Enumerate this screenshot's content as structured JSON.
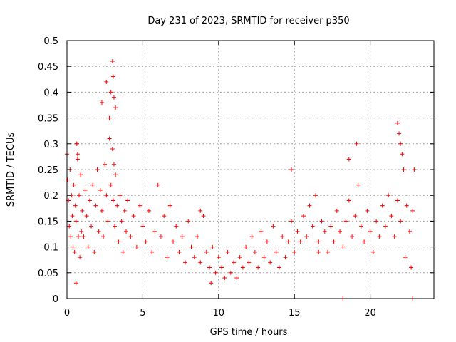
{
  "colors": {
    "series": "#ff0000",
    "axis": "#000000",
    "grid": "#a0a0a0",
    "background": "#ffffff"
  },
  "chart_data": {
    "type": "scatter",
    "title": "Day 231 of 2023, SRMTID for receiver p350",
    "xlabel": "GPS time / hours",
    "ylabel": "SRMTID / TECUs",
    "xlim": [
      0,
      24.2
    ],
    "ylim": [
      0,
      0.5
    ],
    "xticks": [
      0,
      5,
      10,
      15,
      20
    ],
    "xtick_labels": [
      "0",
      "5",
      "10",
      "15",
      "20"
    ],
    "yticks": [
      0,
      0.05,
      0.1,
      0.15,
      0.2,
      0.25,
      0.3,
      0.35,
      0.4,
      0.45,
      0.5
    ],
    "ytick_labels": [
      "0",
      "0.05",
      "0.1",
      "0.15",
      "0.2",
      "0.25",
      "0.3",
      "0.35",
      "0.4",
      "0.45",
      "0.5"
    ],
    "grid": true,
    "marker": "+",
    "series": [
      {
        "name": "SRMTID p350",
        "x": [
          0.0,
          0.05,
          0.1,
          0.15,
          0.2,
          0.25,
          0.3,
          0.35,
          0.4,
          0.45,
          0.5,
          0.55,
          0.6,
          0.65,
          0.7,
          0.75,
          0.8,
          0.85,
          0.9,
          0.95,
          1.0,
          1.1,
          1.2,
          1.3,
          1.4,
          1.5,
          1.6,
          1.7,
          1.8,
          1.9,
          2.0,
          2.1,
          2.2,
          2.3,
          2.4,
          2.5,
          2.6,
          2.7,
          2.8,
          2.9,
          3.0,
          3.05,
          3.1,
          3.15,
          3.2,
          3.3,
          3.4,
          3.5,
          3.6,
          3.7,
          3.8,
          3.9,
          4.0,
          4.2,
          4.4,
          4.6,
          4.8,
          5.0,
          5.2,
          5.4,
          5.6,
          5.8,
          6.0,
          6.2,
          6.4,
          6.6,
          6.8,
          7.0,
          7.2,
          7.4,
          7.6,
          7.8,
          8.0,
          8.2,
          8.4,
          8.6,
          8.8,
          9.0,
          9.2,
          9.4,
          9.6,
          9.8,
          10.0,
          10.2,
          10.4,
          10.6,
          10.8,
          11.0,
          11.2,
          11.4,
          11.6,
          11.8,
          12.0,
          12.2,
          12.4,
          12.6,
          12.8,
          13.0,
          13.2,
          13.4,
          13.6,
          13.8,
          14.0,
          14.2,
          14.4,
          14.6,
          14.8,
          15.0,
          15.2,
          15.4,
          15.6,
          15.8,
          16.0,
          16.2,
          16.4,
          16.6,
          16.8,
          17.0,
          17.2,
          17.4,
          17.6,
          17.8,
          18.0,
          18.2,
          18.4,
          18.6,
          18.8,
          19.0,
          19.2,
          19.4,
          19.6,
          19.8,
          20.0,
          20.2,
          20.4,
          20.6,
          20.8,
          21.0,
          21.2,
          21.4,
          21.6,
          21.8,
          22.0,
          22.2,
          22.4,
          22.6,
          22.8,
          3.0,
          3.05,
          3.1,
          3.2,
          2.9,
          2.8,
          2.6,
          2.3,
          0.65,
          0.7,
          19.1,
          18.6,
          21.8,
          21.9,
          22.0,
          22.1,
          22.3,
          22.7,
          22.9,
          18.2,
          22.8,
          0.6,
          8.8,
          9.5,
          14.8,
          16.6
        ],
        "y": [
          0.28,
          0.23,
          0.19,
          0.14,
          0.25,
          0.12,
          0.2,
          0.16,
          0.1,
          0.22,
          0.09,
          0.18,
          0.15,
          0.3,
          0.27,
          0.12,
          0.2,
          0.08,
          0.24,
          0.13,
          0.17,
          0.12,
          0.21,
          0.16,
          0.1,
          0.19,
          0.14,
          0.22,
          0.09,
          0.18,
          0.25,
          0.13,
          0.21,
          0.17,
          0.12,
          0.26,
          0.2,
          0.15,
          0.31,
          0.22,
          0.29,
          0.19,
          0.26,
          0.14,
          0.24,
          0.18,
          0.11,
          0.2,
          0.15,
          0.09,
          0.17,
          0.13,
          0.19,
          0.12,
          0.16,
          0.1,
          0.18,
          0.14,
          0.11,
          0.17,
          0.09,
          0.13,
          0.22,
          0.12,
          0.16,
          0.08,
          0.18,
          0.11,
          0.14,
          0.09,
          0.12,
          0.07,
          0.15,
          0.1,
          0.08,
          0.12,
          0.07,
          0.16,
          0.09,
          0.06,
          0.1,
          0.05,
          0.08,
          0.06,
          0.04,
          0.09,
          0.05,
          0.07,
          0.04,
          0.08,
          0.06,
          0.1,
          0.07,
          0.12,
          0.09,
          0.06,
          0.13,
          0.08,
          0.11,
          0.07,
          0.14,
          0.09,
          0.06,
          0.12,
          0.08,
          0.11,
          0.15,
          0.09,
          0.13,
          0.11,
          0.16,
          0.12,
          0.18,
          0.14,
          0.2,
          0.11,
          0.15,
          0.13,
          0.09,
          0.14,
          0.11,
          0.17,
          0.13,
          0.1,
          0.15,
          0.19,
          0.12,
          0.16,
          0.22,
          0.14,
          0.11,
          0.17,
          0.13,
          0.09,
          0.15,
          0.12,
          0.18,
          0.14,
          0.2,
          0.16,
          0.12,
          0.19,
          0.15,
          0.25,
          0.18,
          0.13,
          0.17,
          0.46,
          0.43,
          0.39,
          0.37,
          0.4,
          0.35,
          0.42,
          0.38,
          0.3,
          0.28,
          0.3,
          0.27,
          0.34,
          0.32,
          0.3,
          0.28,
          0.08,
          0.06,
          0.25,
          0.0,
          0.0,
          0.03,
          0.17,
          0.03,
          0.25,
          0.09
        ]
      }
    ]
  }
}
